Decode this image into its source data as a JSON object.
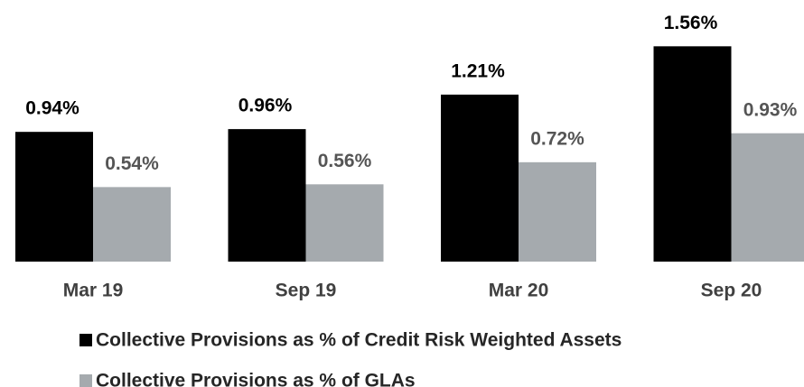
{
  "chart_data": {
    "type": "bar",
    "categories": [
      "Mar 19",
      "Sep 19",
      "Mar 20",
      "Sep 20"
    ],
    "series": [
      {
        "name": "Collective Provisions as % of Credit Risk Weighted Assets",
        "color": "#000000",
        "label_color": "#000000",
        "values": [
          0.94,
          0.96,
          1.21,
          1.56
        ],
        "value_labels": [
          "0.94%",
          "0.96%",
          "1.21%",
          "1.56%"
        ]
      },
      {
        "name": "Collective Provisions as % of GLAs",
        "color": "#a5aaae",
        "label_color": "#555555",
        "values": [
          0.54,
          0.56,
          0.72,
          0.93
        ],
        "value_labels": [
          "0.54%",
          "0.56%",
          "0.72%",
          "0.93%"
        ]
      }
    ]
  }
}
